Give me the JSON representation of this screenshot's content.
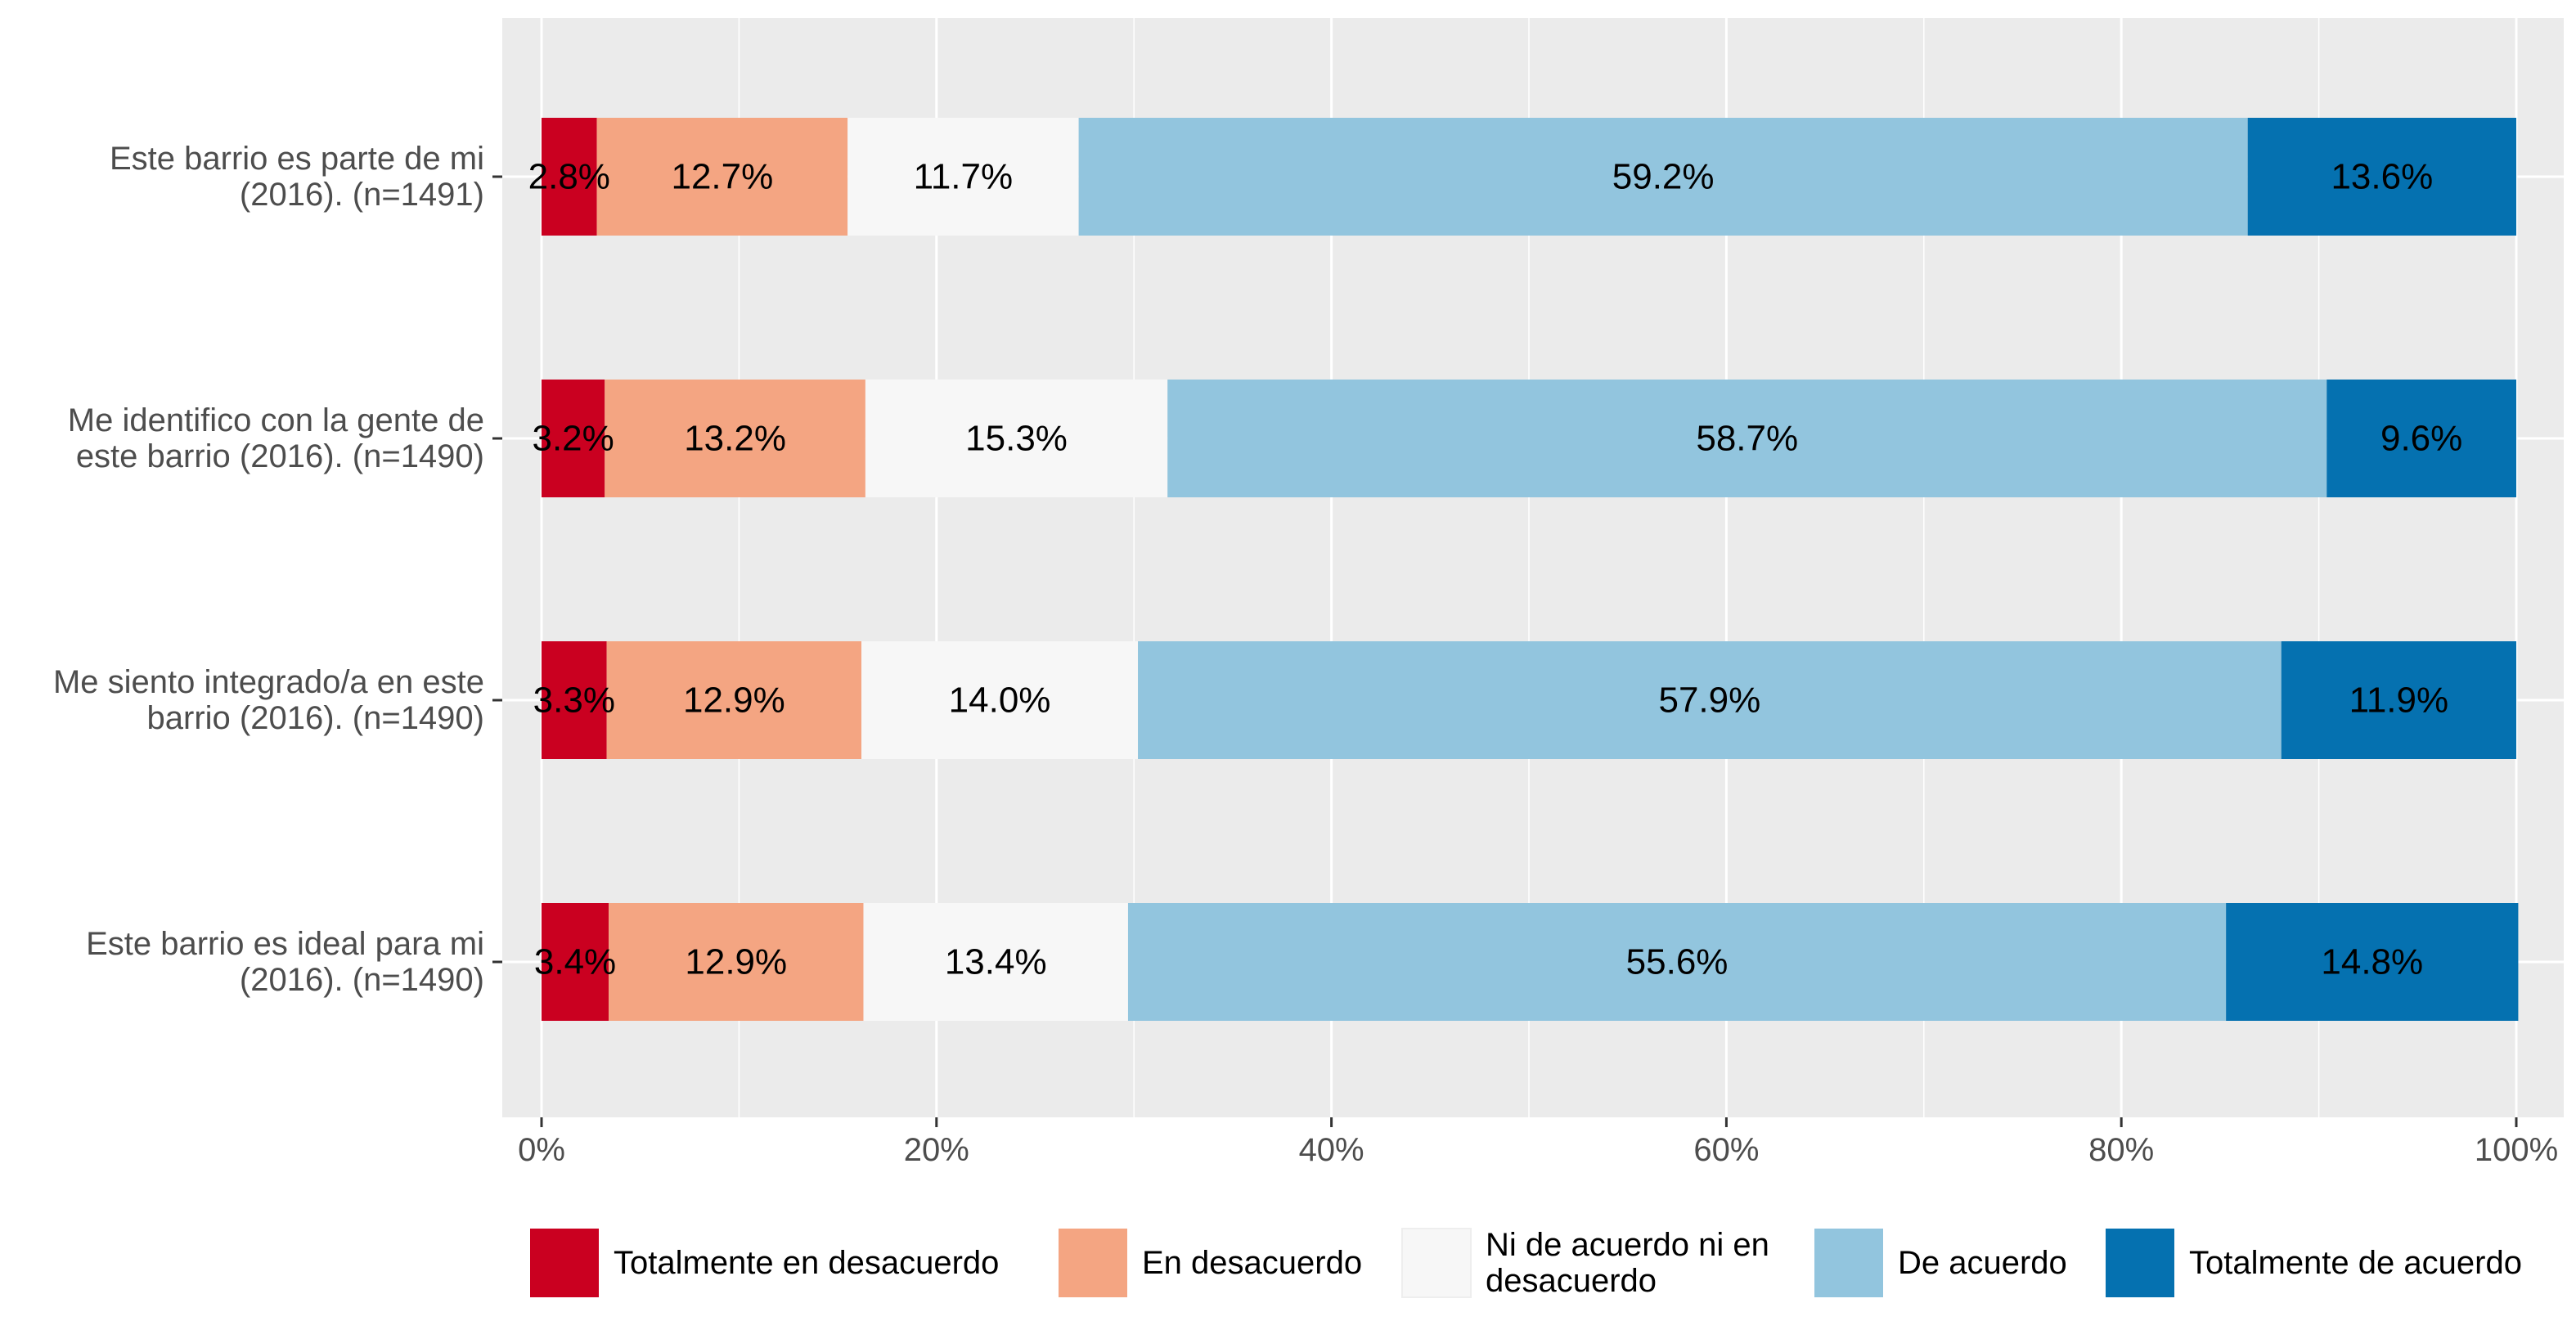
{
  "chart_data": {
    "type": "bar",
    "orientation": "horizontal",
    "stacked": true,
    "title": "",
    "xlabel": "",
    "ylabel": "",
    "xlim": [
      0,
      100
    ],
    "x_ticks": [
      "0%",
      "20%",
      "40%",
      "60%",
      "80%",
      "100%"
    ],
    "x_tick_values": [
      0,
      20,
      40,
      60,
      80,
      100
    ],
    "grid": true,
    "legend_position": "bottom",
    "categories": [
      [
        "Este barrio es parte de mi",
        "(2016). (n=1491)"
      ],
      [
        "Me identifico con la gente de",
        "este barrio (2016). (n=1490)"
      ],
      [
        "Me siento integrado/a en este",
        "barrio (2016). (n=1490)"
      ],
      [
        "Este barrio es ideal para mi",
        "(2016). (n=1490)"
      ]
    ],
    "series": [
      {
        "name": "Totalmente en desacuerdo",
        "legend_lines": [
          "Totalmente en desacuerdo"
        ],
        "color": "#ca0020",
        "values": [
          2.8,
          3.2,
          3.3,
          3.4
        ],
        "labels": [
          "2.8%",
          "3.2%",
          "3.3%",
          "3.4%"
        ]
      },
      {
        "name": "En desacuerdo",
        "legend_lines": [
          "En desacuerdo"
        ],
        "color": "#f4a582",
        "values": [
          12.7,
          13.2,
          12.9,
          12.9
        ],
        "labels": [
          "12.7%",
          "13.2%",
          "12.9%",
          "12.9%"
        ]
      },
      {
        "name": "Ni de acuerdo ni en desacuerdo",
        "legend_lines": [
          "Ni de acuerdo ni en",
          "desacuerdo"
        ],
        "color": "#f7f7f7",
        "values": [
          11.7,
          15.3,
          14.0,
          13.4
        ],
        "labels": [
          "11.7%",
          "15.3%",
          "14.0%",
          "13.4%"
        ]
      },
      {
        "name": "De acuerdo",
        "legend_lines": [
          "De acuerdo"
        ],
        "color": "#92c5de",
        "values": [
          59.2,
          58.7,
          57.9,
          55.6
        ],
        "labels": [
          "59.2%",
          "58.7%",
          "57.9%",
          "55.6%"
        ]
      },
      {
        "name": "Totalmente de acuerdo",
        "legend_lines": [
          "Totalmente de acuerdo"
        ],
        "color": "#0571b0",
        "values": [
          13.6,
          9.6,
          11.9,
          14.8
        ],
        "labels": [
          "13.6%",
          "9.6%",
          "11.9%",
          "14.8%"
        ]
      }
    ]
  }
}
